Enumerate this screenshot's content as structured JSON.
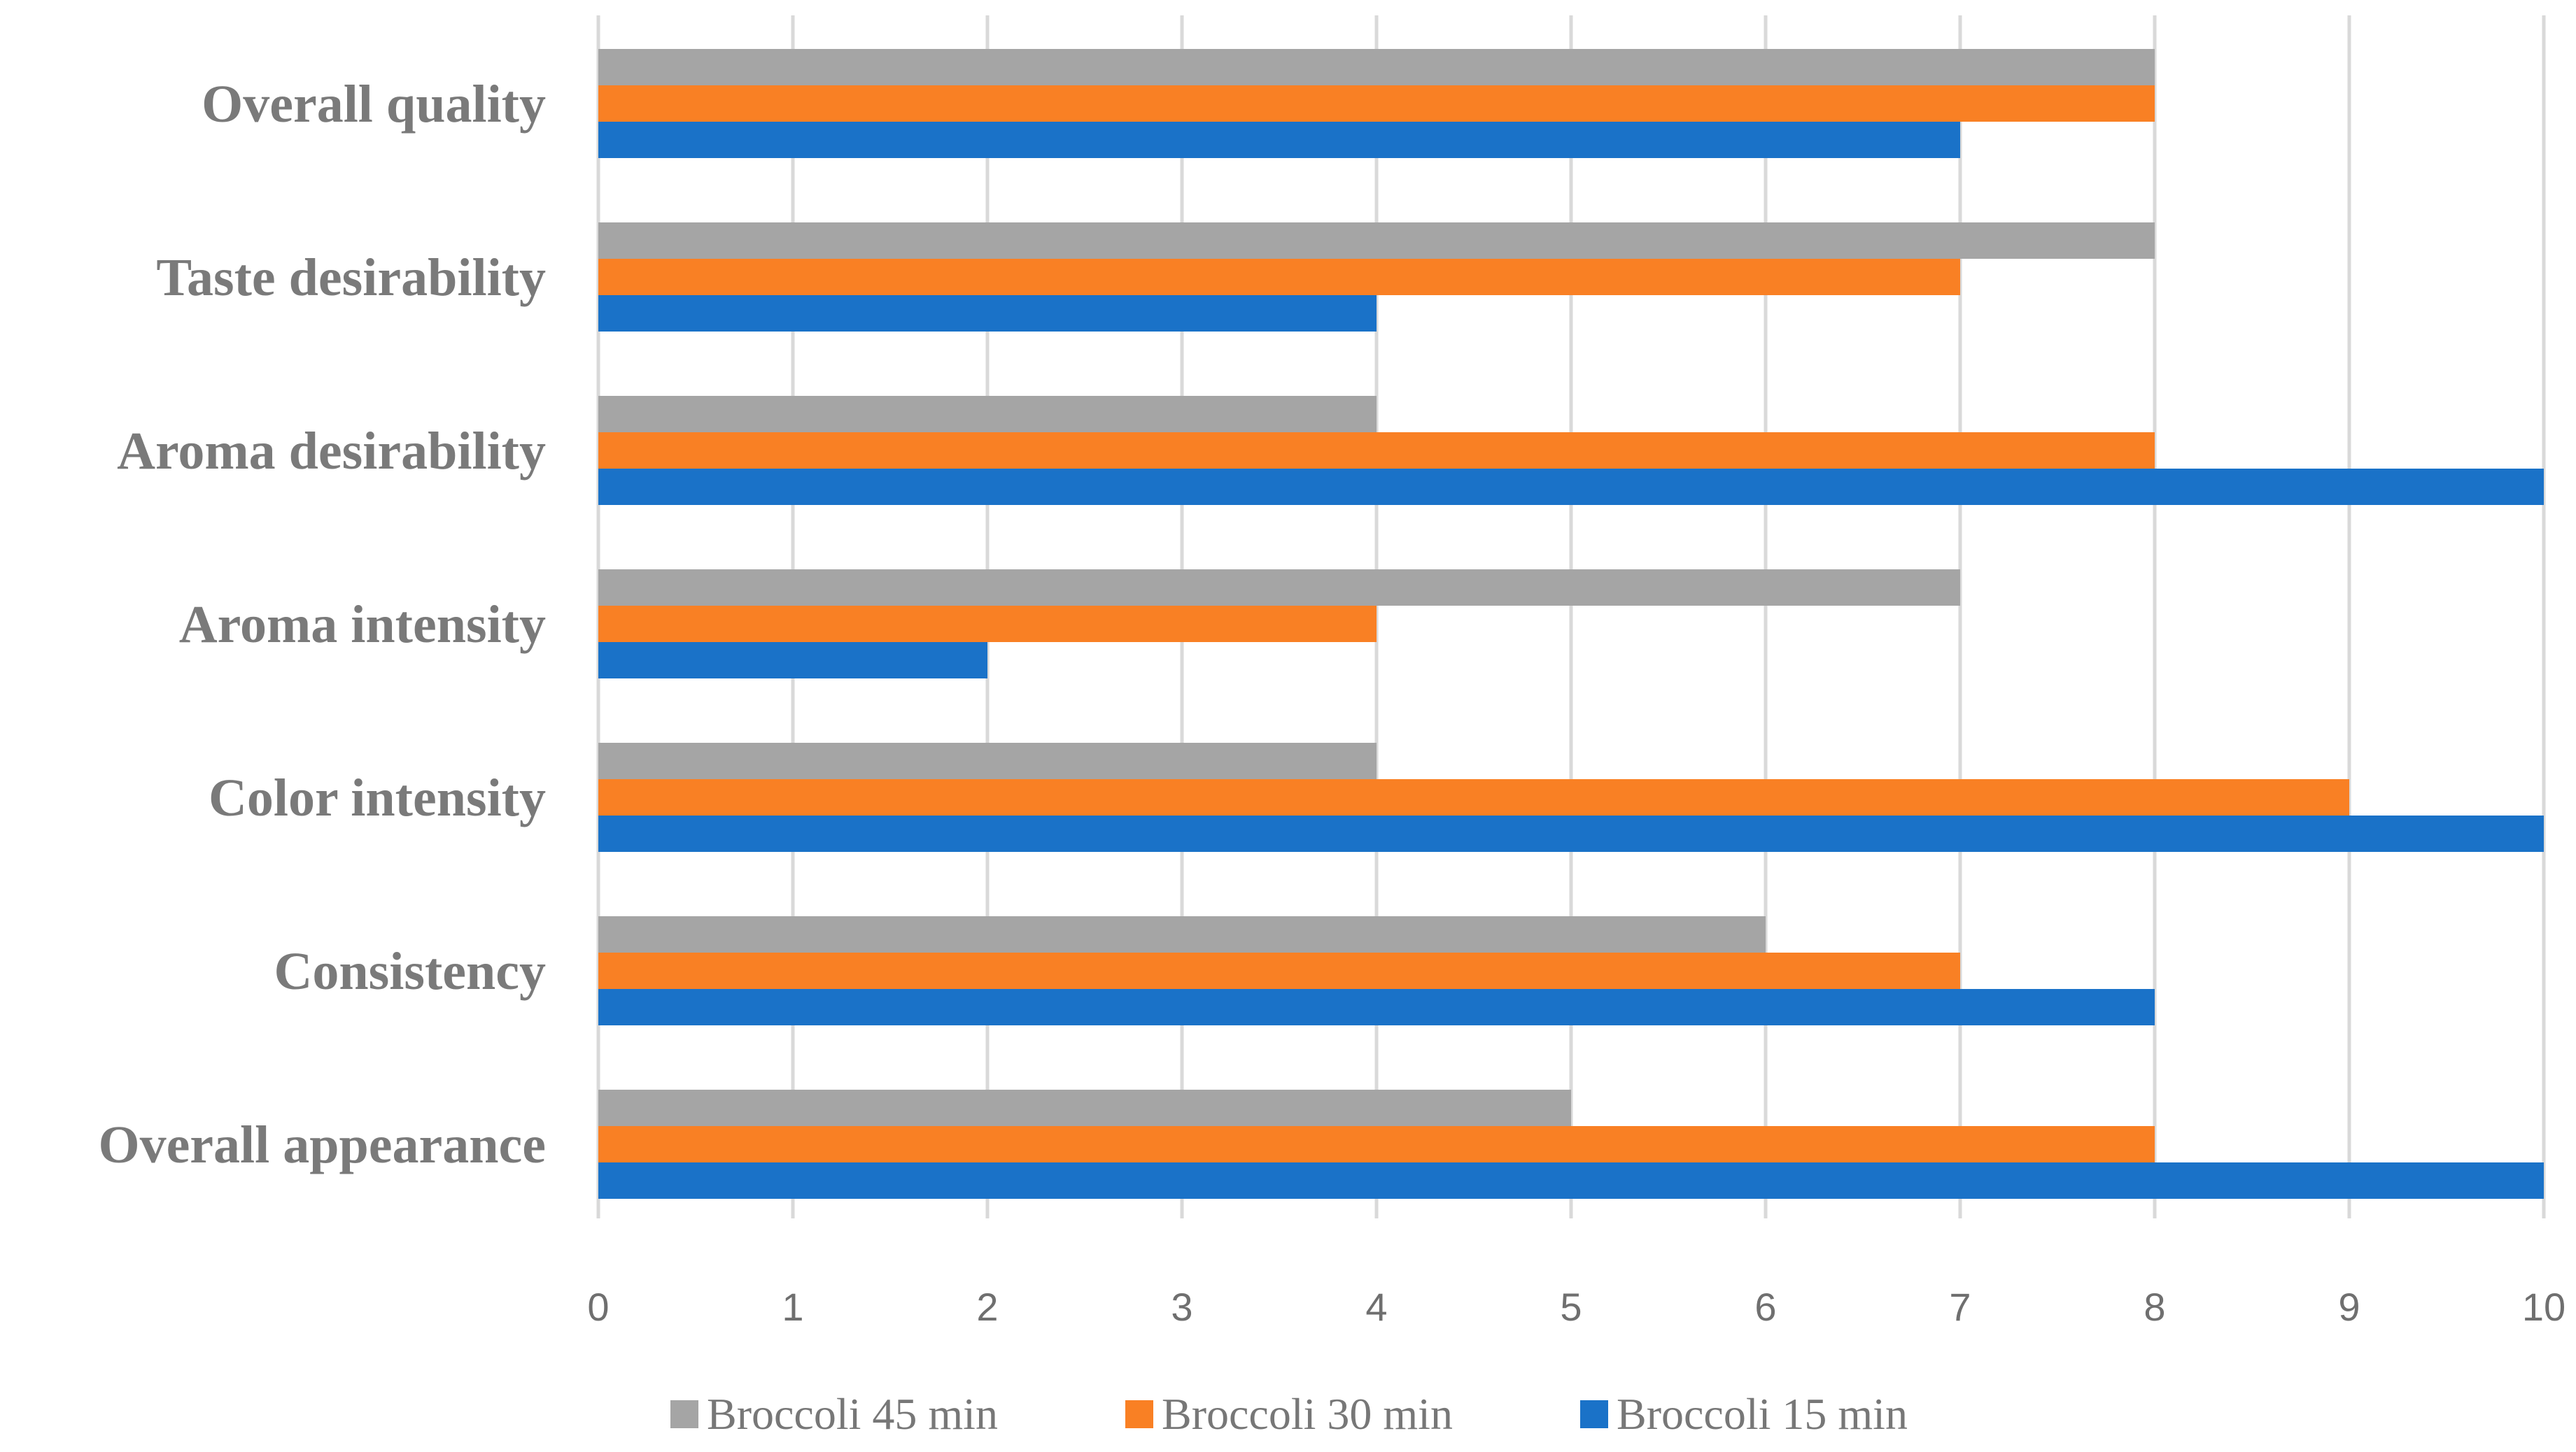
{
  "chart_data": {
    "type": "bar",
    "orientation": "horizontal",
    "title": "",
    "xlabel": "",
    "ylabel": "",
    "xlim": [
      0,
      10
    ],
    "ticks": [
      0,
      1,
      2,
      3,
      4,
      5,
      6,
      7,
      8,
      9,
      10
    ],
    "grid": true,
    "legend_position": "bottom",
    "categories": [
      "Overall quality",
      "Taste desirability",
      "Aroma desirability",
      "Aroma intensity",
      "Color intensity",
      "Consistency",
      "Overall appearance"
    ],
    "series": [
      {
        "name": "Broccoli 45 min",
        "color": "#a5a5a5",
        "values": [
          8,
          8,
          4,
          7,
          4,
          6,
          5
        ]
      },
      {
        "name": "Broccoli 30 min",
        "color": "#f98024",
        "values": [
          8,
          7,
          8,
          4,
          9,
          7,
          8
        ]
      },
      {
        "name": "Broccoli 15 min",
        "color": "#1a72c8",
        "values": [
          7,
          4,
          10,
          2,
          10,
          8,
          10
        ]
      }
    ]
  }
}
